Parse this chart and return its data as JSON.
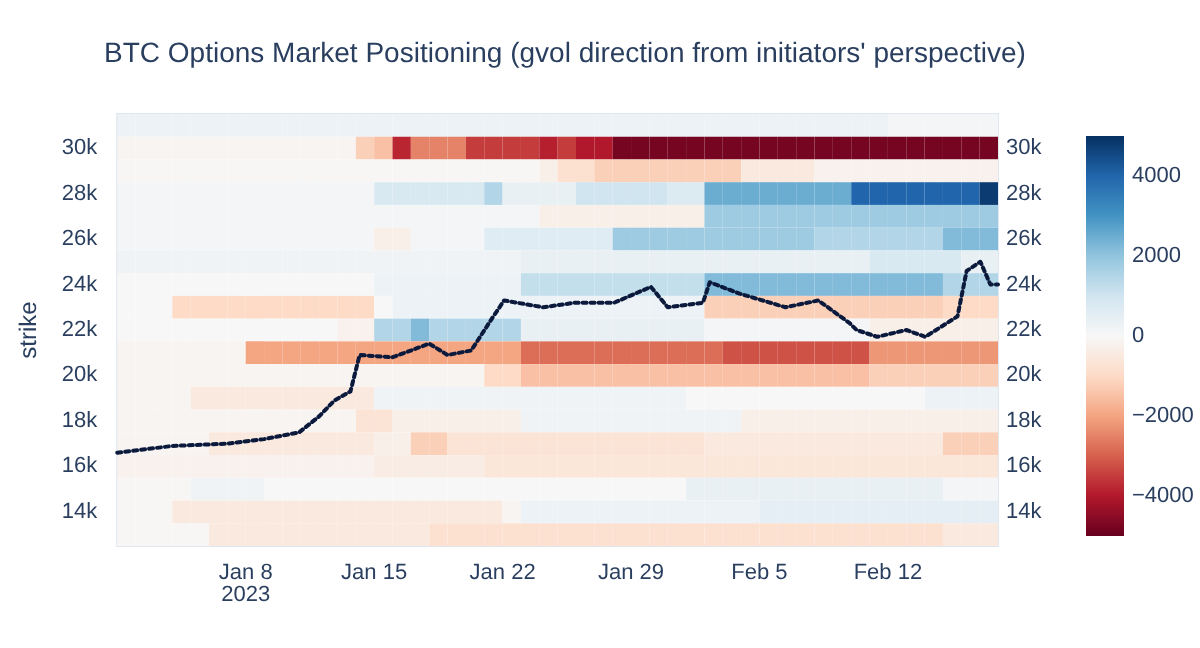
{
  "chart_data": {
    "type": "heatmap",
    "title": "BTC Options Market Positioning (gvol direction from initiators' perspective)",
    "ylabel": "strike",
    "x": [
      "2023-01-01T12:00",
      "2023-01-02T12:00",
      "2023-01-03T12:00",
      "2023-01-04T12:00",
      "2023-01-05T12:00",
      "2023-01-06T12:00",
      "2023-01-07T12:00",
      "2023-01-08T12:00",
      "2023-01-09T12:00",
      "2023-01-10T12:00",
      "2023-01-11T12:00",
      "2023-01-12T12:00",
      "2023-01-13T12:00",
      "2023-01-14T12:00",
      "2023-01-15T12:00",
      "2023-01-16T12:00",
      "2023-01-17T12:00",
      "2023-01-18T12:00",
      "2023-01-19T12:00",
      "2023-01-20T12:00",
      "2023-01-21T12:00",
      "2023-01-22T12:00",
      "2023-01-23T12:00",
      "2023-01-24T12:00",
      "2023-01-25T12:00",
      "2023-01-26T12:00",
      "2023-01-27T12:00",
      "2023-01-28T12:00",
      "2023-01-29T12:00",
      "2023-01-30T12:00",
      "2023-01-31T12:00",
      "2023-02-01T12:00",
      "2023-02-02T12:00",
      "2023-02-03T12:00",
      "2023-02-04T12:00",
      "2023-02-05T12:00",
      "2023-02-06T12:00",
      "2023-02-07T12:00",
      "2023-02-08T12:00",
      "2023-02-09T12:00",
      "2023-02-10T12:00",
      "2023-02-11T12:00",
      "2023-02-12T12:00",
      "2023-02-13T12:00",
      "2023-02-14T12:00",
      "2023-02-15T12:00",
      "2023-02-16T12:00",
      "2023-02-17T12:00"
    ],
    "y_categories": [
      null,
      "30k",
      null,
      "28k",
      null,
      "26k",
      null,
      "24k",
      null,
      "22k",
      null,
      "20k",
      null,
      "18k",
      null,
      "16k",
      null,
      "14k",
      null
    ],
    "cells": [
      [
        300,
        300,
        300,
        300,
        300,
        300,
        300,
        300,
        300,
        300,
        300,
        300,
        300,
        300,
        300,
        300,
        300,
        300,
        300,
        300,
        300,
        300,
        300,
        300,
        300,
        300,
        300,
        300,
        300,
        300,
        300,
        300,
        300,
        300,
        300,
        300,
        300,
        300,
        300,
        300,
        300,
        300,
        100,
        100,
        100,
        100,
        100,
        100
      ],
      [
        -100,
        -100,
        -100,
        -100,
        -100,
        -100,
        -100,
        -100,
        -100,
        -100,
        -100,
        -100,
        -100,
        -1200,
        -1500,
        -3800,
        -2500,
        -2500,
        -2500,
        -3500,
        -3500,
        -3500,
        -3500,
        -3900,
        -3500,
        -4000,
        -4000,
        -4800,
        -4800,
        -4800,
        -4800,
        -4800,
        -4800,
        -4800,
        -4800,
        -4800,
        -4800,
        -4800,
        -4800,
        -4800,
        -4800,
        -4800,
        -4800,
        -4800,
        -4800,
        -4800,
        -4800,
        -4800
      ],
      [
        -50,
        -50,
        -50,
        -50,
        -50,
        -50,
        -50,
        -50,
        -50,
        -50,
        -50,
        -50,
        -50,
        -50,
        -50,
        -50,
        -50,
        -50,
        -50,
        -50,
        -50,
        -50,
        -50,
        -300,
        -800,
        -800,
        -1200,
        -1200,
        -1200,
        -1200,
        -1200,
        -1200,
        -1200,
        -1200,
        -500,
        -500,
        -500,
        -500,
        -200,
        -200,
        -200,
        -200,
        -200,
        -200,
        -200,
        -200,
        -200,
        -200
      ],
      [
        100,
        100,
        100,
        100,
        100,
        100,
        100,
        100,
        100,
        100,
        100,
        100,
        100,
        100,
        800,
        800,
        800,
        800,
        800,
        800,
        1500,
        400,
        400,
        400,
        400,
        1000,
        1000,
        1000,
        1000,
        1000,
        700,
        700,
        2500,
        2500,
        2500,
        2500,
        2500,
        2500,
        2500,
        2500,
        4000,
        4000,
        4000,
        4000,
        4000,
        4000,
        4000,
        4800
      ],
      [
        100,
        100,
        100,
        100,
        100,
        100,
        100,
        100,
        100,
        100,
        100,
        100,
        100,
        100,
        100,
        100,
        100,
        100,
        100,
        100,
        100,
        100,
        100,
        -300,
        -300,
        -300,
        -300,
        -300,
        -300,
        -300,
        -300,
        -300,
        1800,
        1800,
        1800,
        1800,
        1800,
        1800,
        1800,
        1800,
        1800,
        1800,
        1800,
        1800,
        1800,
        1800,
        1800,
        1800
      ],
      [
        100,
        100,
        100,
        100,
        100,
        100,
        100,
        100,
        100,
        100,
        100,
        100,
        100,
        100,
        -300,
        -300,
        100,
        100,
        100,
        100,
        600,
        600,
        600,
        600,
        600,
        600,
        600,
        1800,
        1800,
        1800,
        1800,
        1800,
        1800,
        1800,
        1800,
        1800,
        1800,
        1800,
        1500,
        1500,
        1500,
        1500,
        1500,
        1500,
        1500,
        2200,
        2200,
        2200
      ],
      [
        200,
        200,
        200,
        200,
        200,
        200,
        200,
        200,
        200,
        200,
        200,
        200,
        200,
        200,
        200,
        200,
        200,
        200,
        200,
        200,
        200,
        200,
        400,
        400,
        400,
        400,
        400,
        400,
        400,
        400,
        400,
        400,
        400,
        400,
        400,
        400,
        400,
        400,
        400,
        400,
        400,
        800,
        800,
        800,
        800,
        800,
        400,
        400
      ],
      [
        0,
        0,
        0,
        0,
        0,
        0,
        0,
        0,
        0,
        0,
        0,
        0,
        0,
        0,
        300,
        300,
        300,
        300,
        300,
        300,
        300,
        300,
        1200,
        1200,
        1200,
        1200,
        1200,
        1200,
        1200,
        1200,
        1200,
        1200,
        2200,
        2200,
        2200,
        2200,
        2200,
        2200,
        2200,
        2200,
        2200,
        2200,
        2200,
        2200,
        2200,
        1500,
        1500,
        1500
      ],
      [
        0,
        0,
        0,
        -1000,
        -1000,
        -1000,
        -1000,
        -1000,
        -1000,
        -1000,
        -1000,
        -1000,
        -1000,
        -1000,
        0,
        300,
        300,
        300,
        300,
        300,
        300,
        300,
        300,
        300,
        300,
        300,
        300,
        300,
        300,
        300,
        300,
        300,
        -1200,
        -1200,
        -1200,
        -1200,
        -1200,
        -1200,
        -1200,
        -1200,
        -1200,
        -1200,
        -1200,
        -1200,
        -1200,
        -1000,
        -1000,
        -1000
      ],
      [
        0,
        0,
        0,
        0,
        0,
        0,
        0,
        0,
        0,
        0,
        0,
        0,
        -200,
        -200,
        1500,
        1500,
        2200,
        1500,
        1500,
        1500,
        1500,
        1500,
        400,
        400,
        400,
        400,
        400,
        400,
        400,
        400,
        400,
        400,
        100,
        100,
        100,
        100,
        100,
        100,
        100,
        100,
        100,
        -300,
        -300,
        -300,
        -300,
        -300,
        -300,
        -300
      ],
      [
        -100,
        -100,
        -100,
        -100,
        -100,
        -100,
        -100,
        -2000,
        -2000,
        -2000,
        -2000,
        -2000,
        -2000,
        -2000,
        -2000,
        -2000,
        -2000,
        -2000,
        -2000,
        -2000,
        -2000,
        -2000,
        -2800,
        -2800,
        -2800,
        -2800,
        -2800,
        -2800,
        -2800,
        -2800,
        -2800,
        -2800,
        -2800,
        -3200,
        -3200,
        -3200,
        -3200,
        -3200,
        -3200,
        -3200,
        -3200,
        -2200,
        -2200,
        -2200,
        -2200,
        -2200,
        -2200,
        -2200
      ],
      [
        -100,
        -100,
        -100,
        -100,
        -100,
        -100,
        -100,
        -100,
        -100,
        -100,
        -100,
        -100,
        -100,
        -100,
        -100,
        -100,
        -100,
        -100,
        -100,
        -100,
        -1000,
        -1000,
        -1500,
        -1500,
        -1500,
        -1500,
        -1500,
        -1500,
        -1500,
        -1500,
        -1500,
        -1500,
        -1500,
        -1500,
        -1500,
        -1500,
        -1500,
        -1500,
        -1500,
        -1500,
        -1500,
        -1200,
        -1200,
        -1200,
        -1200,
        -1200,
        -1200,
        -1200
      ],
      [
        -100,
        -100,
        -100,
        -100,
        -500,
        -500,
        -500,
        -500,
        -500,
        -500,
        -500,
        -500,
        -500,
        -500,
        200,
        200,
        200,
        200,
        200,
        200,
        200,
        200,
        200,
        200,
        200,
        200,
        200,
        200,
        200,
        200,
        200,
        0,
        0,
        0,
        0,
        0,
        0,
        0,
        0,
        0,
        0,
        0,
        0,
        0,
        300,
        300,
        300,
        300
      ],
      [
        -100,
        -100,
        -100,
        -100,
        -100,
        -100,
        -100,
        -100,
        -100,
        -100,
        -100,
        -100,
        -100,
        -700,
        -700,
        -300,
        -300,
        -300,
        -300,
        -300,
        -300,
        -300,
        200,
        200,
        200,
        200,
        200,
        200,
        200,
        200,
        200,
        200,
        200,
        200,
        -300,
        -300,
        -300,
        -300,
        -300,
        -300,
        -300,
        -300,
        -300,
        -300,
        -300,
        -300,
        -300,
        -300
      ],
      [
        -100,
        -100,
        -100,
        -100,
        -100,
        -500,
        -500,
        -500,
        -500,
        -500,
        -500,
        -500,
        -500,
        -500,
        -300,
        -300,
        -1200,
        -1200,
        -700,
        -700,
        -700,
        -700,
        -700,
        -700,
        -700,
        -700,
        -700,
        -700,
        -700,
        -700,
        -700,
        -700,
        -500,
        -500,
        -500,
        -500,
        -500,
        -500,
        -500,
        -500,
        -500,
        -500,
        -500,
        -500,
        -500,
        -1200,
        -1200,
        -1200
      ],
      [
        -200,
        -200,
        -200,
        -200,
        -200,
        -200,
        -200,
        -200,
        -200,
        -200,
        -200,
        -200,
        -200,
        -200,
        -400,
        -400,
        -400,
        -400,
        -400,
        -400,
        -600,
        -600,
        -600,
        -600,
        -600,
        -600,
        -600,
        -600,
        -600,
        -600,
        -600,
        -600,
        -600,
        -600,
        -600,
        -600,
        -600,
        -600,
        -600,
        -600,
        -600,
        -600,
        -600,
        -600,
        -600,
        -600,
        -600,
        -600
      ],
      [
        -50,
        -50,
        -50,
        -50,
        200,
        200,
        200,
        200,
        0,
        0,
        0,
        0,
        0,
        0,
        0,
        0,
        0,
        0,
        0,
        0,
        0,
        0,
        0,
        0,
        0,
        0,
        0,
        0,
        0,
        0,
        0,
        400,
        400,
        400,
        400,
        400,
        400,
        400,
        400,
        400,
        400,
        400,
        400,
        400,
        400,
        100,
        100,
        100
      ],
      [
        -50,
        -50,
        -50,
        -500,
        -500,
        -500,
        -500,
        -500,
        -500,
        -500,
        -500,
        -500,
        -500,
        -500,
        -500,
        -500,
        -500,
        -500,
        -500,
        -500,
        -500,
        -100,
        300,
        300,
        300,
        300,
        300,
        300,
        300,
        300,
        300,
        300,
        300,
        300,
        300,
        500,
        500,
        500,
        500,
        500,
        500,
        500,
        500,
        500,
        500,
        500,
        500,
        500
      ],
      [
        -50,
        -50,
        -50,
        -50,
        -50,
        -500,
        -500,
        -500,
        -500,
        -500,
        -500,
        -500,
        -500,
        -500,
        -500,
        -500,
        -500,
        -800,
        -800,
        -800,
        -800,
        -800,
        -800,
        -800,
        -800,
        -800,
        -800,
        -800,
        -800,
        -800,
        -800,
        -800,
        -800,
        -800,
        -800,
        -800,
        -800,
        -800,
        -800,
        -800,
        -800,
        -800,
        -800,
        -800,
        -800,
        -500,
        -500,
        -500
      ]
    ],
    "clim": [
      -5000,
      5000
    ],
    "cticks": [
      {
        "value": -4000,
        "label": "−4000"
      },
      {
        "value": -2000,
        "label": "−2000"
      },
      0,
      2000,
      4000
    ],
    "xlim": [
      "2023-01-01",
      "2023-02-18"
    ],
    "xticks": [
      {
        "value": "2023-01-08",
        "label": "Jan 8\n2023"
      },
      {
        "value": "2023-01-15",
        "label": "Jan 15"
      },
      {
        "value": "2023-01-22",
        "label": "Jan 22"
      },
      {
        "value": "2023-01-29",
        "label": "Jan 29"
      },
      {
        "value": "2023-02-05",
        "label": "Feb 5"
      },
      {
        "value": "2023-02-12",
        "label": "Feb 12"
      }
    ],
    "y2lim": [
      12.5,
      31.5
    ],
    "y2ticks": [
      {
        "value": 14,
        "label": "14k"
      },
      {
        "value": 16,
        "label": "16k"
      },
      {
        "value": 18,
        "label": "18k"
      },
      {
        "value": 20,
        "label": "20k"
      },
      {
        "value": 22,
        "label": "22k"
      },
      {
        "value": 24,
        "label": "24k"
      },
      {
        "value": 26,
        "label": "26k"
      },
      {
        "value": 28,
        "label": "28k"
      },
      {
        "value": 30,
        "label": "30k"
      }
    ],
    "line_style": "dotted",
    "marker": "none",
    "series": [
      {
        "type": "line",
        "axis": "y2",
        "color": "#0b1a3c",
        "x": [
          "2023-01-01T00:00",
          "2023-01-04T00:00",
          "2023-01-07T00:00",
          "2023-01-09T00:00",
          "2023-01-10T22:00",
          "2023-01-12T00:00",
          "2023-01-12T20:00",
          "2023-01-13T17:00",
          "2023-01-14T05:00",
          "2023-01-16T00:00",
          "2023-01-18T00:00",
          "2023-01-19T00:00",
          "2023-01-20T07:00",
          "2023-01-21T10:00",
          "2023-01-22T02:00",
          "2023-01-24T05:00",
          "2023-01-25T23:00",
          "2023-01-28T02:00",
          "2023-01-30T02:00",
          "2023-01-31T00:00",
          "2023-02-01T22:00",
          "2023-02-02T07:00",
          "2023-02-03T22:00",
          "2023-02-06T10:00",
          "2023-02-08T05:00",
          "2023-02-09T22:00",
          "2023-02-10T07:00",
          "2023-02-11T10:00",
          "2023-02-13T00:00",
          "2023-02-14T01:00",
          "2023-02-15T05:00",
          "2023-02-15T19:00",
          "2023-02-16T07:00",
          "2023-02-17T01:00",
          "2023-02-17T14:00",
          "2023-02-18T00:00"
        ],
        "values": [
          16.6,
          16.9,
          17.0,
          17.2,
          17.5,
          18.2,
          18.9,
          19.3,
          20.9,
          20.8,
          21.4,
          20.9,
          21.1,
          22.5,
          23.3,
          23.0,
          23.2,
          23.2,
          23.9,
          23.0,
          23.2,
          24.1,
          23.6,
          23.0,
          23.3,
          22.3,
          22.0,
          21.7,
          22.0,
          21.7,
          22.3,
          22.6,
          24.6,
          25.0,
          24.0,
          24.0
        ]
      }
    ]
  }
}
